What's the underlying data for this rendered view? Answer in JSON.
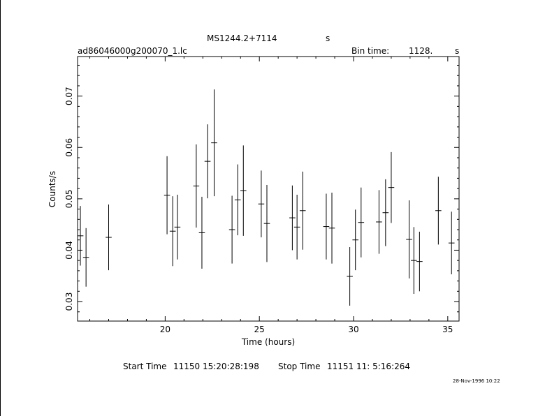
{
  "header": {
    "object": "MS1244.2+7114",
    "object_suffix": "s",
    "file": "ad86046000g200070_1.lc",
    "bin_label": "Bin time:",
    "bin_value": "1128.",
    "bin_unit": "s"
  },
  "footer": {
    "start_label": "Start Time",
    "start_value": "11150 15:20:28:198",
    "stop_label": "Stop Time",
    "stop_value": "11151 11: 5:16:264",
    "stamp": "28-Nov-1996 10:22"
  },
  "colors": {
    "background": "#ffffff",
    "ink": "#000000"
  },
  "chart_data": {
    "type": "scatter",
    "title": "MS1244.2+7114",
    "xlabel": "Time (hours)",
    "ylabel": "Counts/s",
    "xlim": [
      15.35,
      35.6
    ],
    "ylim": [
      0.0262,
      0.0777
    ],
    "xticks": [
      20,
      25,
      30,
      35
    ],
    "yticks": [
      0.03,
      0.04,
      0.05,
      0.06,
      0.07
    ],
    "ytick_labels": [
      "0.03",
      "0.04",
      "0.05",
      "0.06",
      "0.07"
    ],
    "grid": false,
    "error_bars": true,
    "points": [
      {
        "x": 15.5,
        "y": 0.0428,
        "xerr": 0.16,
        "yerr": 0.0058
      },
      {
        "x": 15.8,
        "y": 0.0386,
        "xerr": 0.16,
        "yerr": 0.0057
      },
      {
        "x": 17.0,
        "y": 0.0425,
        "xerr": 0.16,
        "yerr": 0.0064
      },
      {
        "x": 20.1,
        "y": 0.0507,
        "xerr": 0.16,
        "yerr": 0.0076
      },
      {
        "x": 20.4,
        "y": 0.0437,
        "xerr": 0.16,
        "yerr": 0.0068
      },
      {
        "x": 20.65,
        "y": 0.0445,
        "xerr": 0.16,
        "yerr": 0.0063
      },
      {
        "x": 21.65,
        "y": 0.0525,
        "xerr": 0.16,
        "yerr": 0.0081
      },
      {
        "x": 21.95,
        "y": 0.0434,
        "xerr": 0.16,
        "yerr": 0.007
      },
      {
        "x": 22.25,
        "y": 0.0573,
        "xerr": 0.16,
        "yerr": 0.0072
      },
      {
        "x": 22.6,
        "y": 0.0609,
        "xerr": 0.16,
        "yerr": 0.0104
      },
      {
        "x": 23.55,
        "y": 0.044,
        "xerr": 0.16,
        "yerr": 0.0066
      },
      {
        "x": 23.85,
        "y": 0.0498,
        "xerr": 0.16,
        "yerr": 0.0069
      },
      {
        "x": 24.15,
        "y": 0.0516,
        "xerr": 0.16,
        "yerr": 0.0088
      },
      {
        "x": 25.1,
        "y": 0.049,
        "xerr": 0.16,
        "yerr": 0.0065
      },
      {
        "x": 25.4,
        "y": 0.0452,
        "xerr": 0.16,
        "yerr": 0.0075
      },
      {
        "x": 26.75,
        "y": 0.0463,
        "xerr": 0.16,
        "yerr": 0.0063
      },
      {
        "x": 27.0,
        "y": 0.0445,
        "xerr": 0.16,
        "yerr": 0.0063
      },
      {
        "x": 27.3,
        "y": 0.0477,
        "xerr": 0.16,
        "yerr": 0.0076
      },
      {
        "x": 28.55,
        "y": 0.0446,
        "xerr": 0.16,
        "yerr": 0.0064
      },
      {
        "x": 28.85,
        "y": 0.0443,
        "xerr": 0.16,
        "yerr": 0.0069
      },
      {
        "x": 29.8,
        "y": 0.0349,
        "xerr": 0.16,
        "yerr": 0.0057
      },
      {
        "x": 30.1,
        "y": 0.042,
        "xerr": 0.16,
        "yerr": 0.0059
      },
      {
        "x": 30.4,
        "y": 0.0454,
        "xerr": 0.16,
        "yerr": 0.0068
      },
      {
        "x": 31.35,
        "y": 0.0455,
        "xerr": 0.16,
        "yerr": 0.0062
      },
      {
        "x": 31.7,
        "y": 0.0473,
        "xerr": 0.16,
        "yerr": 0.0065
      },
      {
        "x": 32.0,
        "y": 0.0522,
        "xerr": 0.16,
        "yerr": 0.0069
      },
      {
        "x": 32.95,
        "y": 0.0421,
        "xerr": 0.16,
        "yerr": 0.0076
      },
      {
        "x": 33.2,
        "y": 0.038,
        "xerr": 0.16,
        "yerr": 0.0065
      },
      {
        "x": 33.5,
        "y": 0.0378,
        "xerr": 0.16,
        "yerr": 0.0058
      },
      {
        "x": 34.5,
        "y": 0.0477,
        "xerr": 0.16,
        "yerr": 0.0066
      },
      {
        "x": 35.2,
        "y": 0.0414,
        "xerr": 0.16,
        "yerr": 0.0061
      }
    ]
  }
}
